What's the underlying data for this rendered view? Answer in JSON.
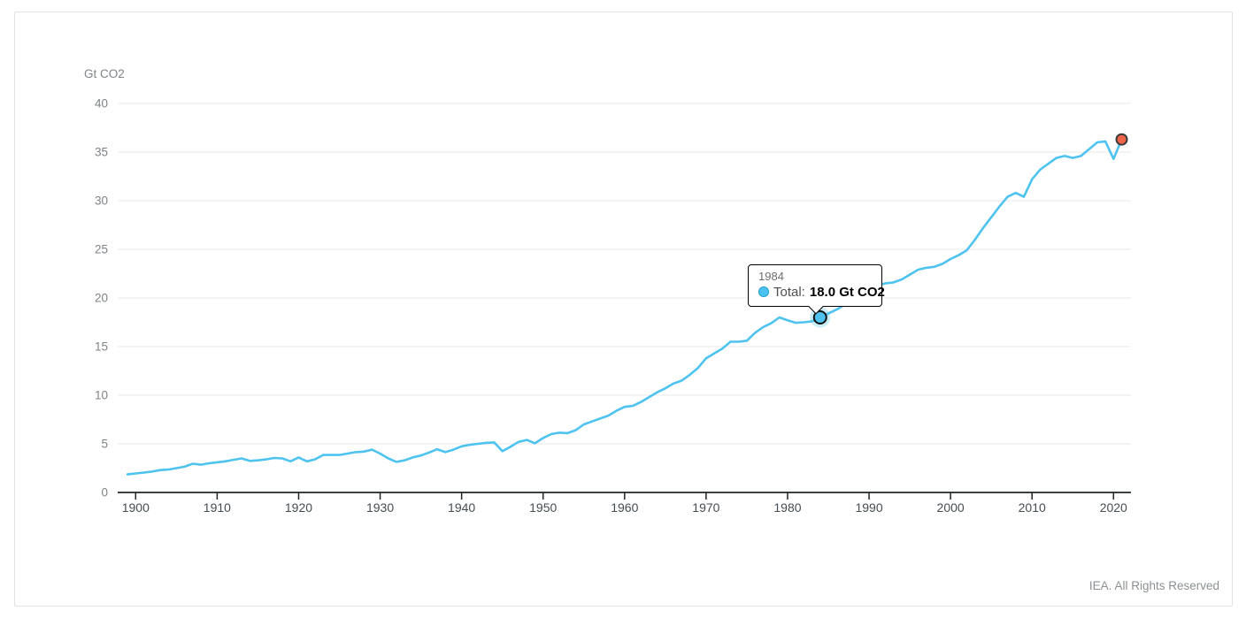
{
  "chart_data": {
    "type": "line",
    "ylabel": "Gt CO2",
    "xlabel": "",
    "x_ticks": [
      1900,
      1910,
      1920,
      1930,
      1940,
      1950,
      1960,
      1970,
      1980,
      1990,
      2000,
      2010,
      2020
    ],
    "y_ticks": [
      0,
      5,
      10,
      15,
      20,
      25,
      30,
      35,
      40
    ],
    "ylim": [
      0,
      40
    ],
    "x_range": [
      1899,
      2021
    ],
    "grid": "horizontal",
    "legend_position": "none",
    "series": [
      {
        "name": "Total",
        "x_start": 1899,
        "x_step": 1,
        "values": [
          1.85,
          1.95,
          2.05,
          2.15,
          2.3,
          2.35,
          2.5,
          2.65,
          2.95,
          2.85,
          3.0,
          3.1,
          3.2,
          3.35,
          3.5,
          3.25,
          3.3,
          3.4,
          3.55,
          3.5,
          3.2,
          3.6,
          3.2,
          3.4,
          3.85,
          3.85,
          3.85,
          4.0,
          4.15,
          4.2,
          4.4,
          4.0,
          3.5,
          3.15,
          3.3,
          3.6,
          3.8,
          4.1,
          4.45,
          4.15,
          4.4,
          4.75,
          4.9,
          5.0,
          5.1,
          5.15,
          4.25,
          4.7,
          5.2,
          5.4,
          5.05,
          5.6,
          6.0,
          6.15,
          6.1,
          6.4,
          7.0,
          7.3,
          7.6,
          7.9,
          8.4,
          8.8,
          8.9,
          9.3,
          9.8,
          10.3,
          10.7,
          11.2,
          11.5,
          12.1,
          12.8,
          13.8,
          14.3,
          14.8,
          15.5,
          15.5,
          15.6,
          16.4,
          17.0,
          17.4,
          18.0,
          17.7,
          17.45,
          17.5,
          17.6,
          18.0,
          18.4,
          18.8,
          19.3,
          20.1,
          20.7,
          21.1,
          21.3,
          21.5,
          21.6,
          21.9,
          22.4,
          22.9,
          23.1,
          23.2,
          23.5,
          24.0,
          24.4,
          24.9,
          26.0,
          27.2,
          28.3,
          29.4,
          30.4,
          30.8,
          30.4,
          32.2,
          33.2,
          33.8,
          34.4,
          34.6,
          34.4,
          34.6,
          35.3,
          36.0,
          36.1,
          34.3,
          36.3
        ]
      }
    ],
    "highlight_point": {
      "year": 1984,
      "value": 18.0
    },
    "end_point": {
      "year": 2021,
      "value": 36.3
    }
  },
  "chart": {
    "unit_label": "Gt CO2"
  },
  "tooltip": {
    "year": "1984",
    "series_label": "Total:",
    "value": "18.0 Gt CO2"
  },
  "footer": {
    "credit": "IEA. All Rights Reserved"
  },
  "colors": {
    "line": "#4ec3f0",
    "highlight_fill": "#4ec3f0",
    "highlight_stroke": "#111111",
    "highlight_halo": "rgba(78,195,240,0.3)",
    "endpoint_fill": "#f0654a",
    "endpoint_stroke": "#3b3b3b",
    "gridline": "#e8e8e8",
    "axis": "#1f2426"
  }
}
